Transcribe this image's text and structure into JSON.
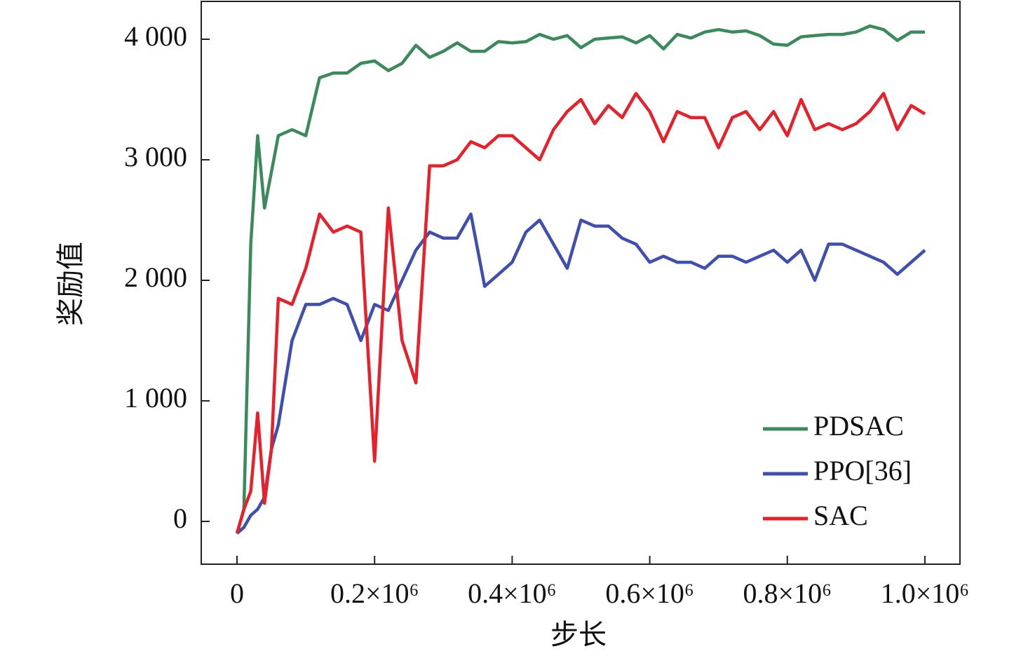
{
  "chart_data": {
    "type": "line",
    "xlabel": "步长",
    "ylabel": "奖励值",
    "x": [
      0,
      10000,
      20000,
      30000,
      40000,
      50000,
      60000,
      80000,
      100000,
      120000,
      140000,
      160000,
      180000,
      200000,
      220000,
      240000,
      260000,
      280000,
      300000,
      320000,
      340000,
      360000,
      380000,
      400000,
      420000,
      440000,
      460000,
      480000,
      500000,
      520000,
      540000,
      560000,
      580000,
      600000,
      620000,
      640000,
      660000,
      680000,
      700000,
      720000,
      740000,
      760000,
      780000,
      800000,
      820000,
      840000,
      860000,
      880000,
      900000,
      920000,
      940000,
      960000,
      980000,
      1000000
    ],
    "series": [
      {
        "name": "PDSAC",
        "color": "#3a8a5c",
        "values": [
          -100,
          100,
          2300,
          3200,
          2600,
          2900,
          3200,
          3250,
          3200,
          3680,
          3720,
          3720,
          3800,
          3820,
          3740,
          3800,
          3950,
          3850,
          3900,
          3970,
          3900,
          3900,
          3980,
          3970,
          3980,
          4040,
          4000,
          4030,
          3930,
          4000,
          4010,
          4020,
          3970,
          4030,
          3920,
          4040,
          4010,
          4060,
          4080,
          4060,
          4070,
          4030,
          3960,
          3950,
          4020,
          4030,
          4040,
          4040,
          4060,
          4110,
          4080,
          3990,
          4060,
          4060
        ]
      },
      {
        "name": "PPO[36]",
        "color": "#3f4fb0",
        "values": [
          -100,
          -50,
          50,
          100,
          200,
          600,
          800,
          1500,
          1800,
          1800,
          1850,
          1800,
          1500,
          1800,
          1750,
          2000,
          2250,
          2400,
          2350,
          2350,
          2550,
          1950,
          2050,
          2150,
          2400,
          2500,
          2300,
          2100,
          2500,
          2450,
          2450,
          2350,
          2300,
          2150,
          2200,
          2150,
          2150,
          2100,
          2200,
          2200,
          2150,
          2200,
          2250,
          2150,
          2250,
          2000,
          2300,
          2300,
          2250,
          2200,
          2150,
          2050,
          2150,
          2250
        ]
      },
      {
        "name": "SAC",
        "color": "#e8202a",
        "values": [
          -100,
          100,
          250,
          900,
          150,
          600,
          1850,
          1800,
          2100,
          2550,
          2400,
          2450,
          2400,
          500,
          2600,
          1500,
          1150,
          2950,
          2950,
          3000,
          3150,
          3100,
          3200,
          3200,
          3100,
          3000,
          3250,
          3400,
          3500,
          3300,
          3450,
          3350,
          3550,
          3400,
          3150,
          3400,
          3350,
          3350,
          3100,
          3350,
          3400,
          3250,
          3400,
          3200,
          3500,
          3250,
          3300,
          3250,
          3300,
          3400,
          3550,
          3250,
          3450,
          3380
        ]
      }
    ],
    "xlim": [
      -52000,
      1051000
    ],
    "ylim": [
      -355,
      4314
    ],
    "xticks": [
      0,
      {
        "value": 200000,
        "label": "0.2×10⁶"
      },
      {
        "value": 400000,
        "label": "0.4×10⁶"
      },
      {
        "value": 600000,
        "label": "0.6×10⁶"
      },
      {
        "value": 800000,
        "label": "0.8×10⁶"
      },
      {
        "value": 1000000,
        "label": "1.0×10⁶"
      }
    ],
    "yticks": [
      {
        "value": 0,
        "label": "0"
      },
      {
        "value": 1000,
        "label": "1 000"
      },
      {
        "value": 2000,
        "label": "2 000"
      },
      {
        "value": 3000,
        "label": "3 000"
      },
      {
        "value": 4000,
        "label": "4 000"
      }
    ],
    "legend": "lower right",
    "grid": false
  }
}
